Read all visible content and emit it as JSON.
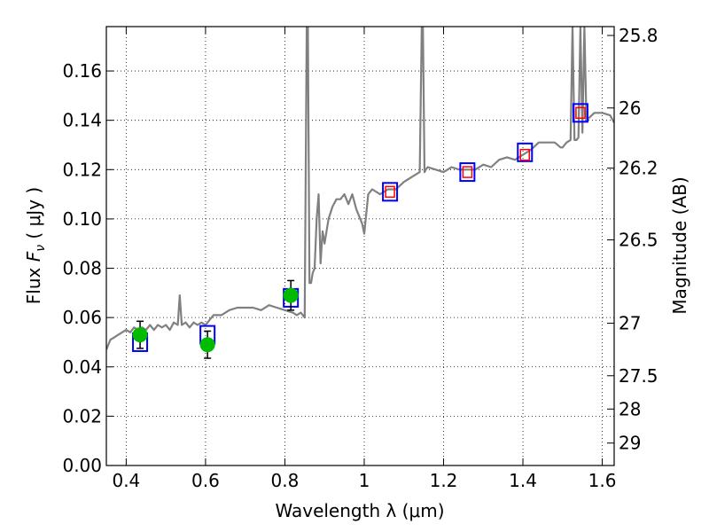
{
  "chart_data": {
    "type": "line",
    "xlabel": "Wavelength  λ (μm)",
    "ylabel": "Flux  F_ν  ( μJy )",
    "ylabel_parts": {
      "prefix": "Flux  ",
      "symbol": "F",
      "subscript": "ν",
      "unit": "  ( μJy )"
    },
    "y2label": "Magnitude (AB)",
    "xlim": [
      0.35,
      1.63
    ],
    "ylim": [
      0.0,
      0.178
    ],
    "grid": true,
    "x_ticks": [
      0.4,
      0.6,
      0.8,
      1.0,
      1.2,
      1.4,
      1.6
    ],
    "x_tick_labels": [
      "0.4",
      "0.6",
      "0.8",
      "1",
      "1.2",
      "1.4",
      "1.6"
    ],
    "y_ticks": [
      0.0,
      0.02,
      0.04,
      0.06,
      0.08,
      0.1,
      0.12,
      0.14,
      0.16
    ],
    "y_tick_labels": [
      "0.00",
      "0.02",
      "0.04",
      "0.06",
      "0.08",
      "0.10",
      "0.12",
      "0.14",
      "0.16"
    ],
    "y2_ticks": [
      {
        "label": "25.8",
        "flux": 0.1744
      },
      {
        "label": "26",
        "flux": 0.145
      },
      {
        "label": "26.2",
        "flux": 0.1206
      },
      {
        "label": "26.5",
        "flux": 0.0915
      },
      {
        "label": "27",
        "flux": 0.0577
      },
      {
        "label": "27.5",
        "flux": 0.0364
      },
      {
        "label": "28",
        "flux": 0.0229
      },
      {
        "label": "29",
        "flux": 0.0091
      }
    ],
    "series": [
      {
        "kind": "model-spectrum",
        "color": "#808080",
        "x": [
          0.35,
          0.36,
          0.37,
          0.38,
          0.39,
          0.4,
          0.41,
          0.42,
          0.43,
          0.44,
          0.45,
          0.46,
          0.47,
          0.48,
          0.49,
          0.5,
          0.51,
          0.52,
          0.53,
          0.535,
          0.54,
          0.55,
          0.56,
          0.57,
          0.58,
          0.59,
          0.6,
          0.61,
          0.62,
          0.64,
          0.66,
          0.68,
          0.7,
          0.72,
          0.74,
          0.76,
          0.78,
          0.8,
          0.82,
          0.83,
          0.84,
          0.85,
          0.855,
          0.858,
          0.862,
          0.866,
          0.87,
          0.875,
          0.88,
          0.885,
          0.89,
          0.895,
          0.9,
          0.91,
          0.92,
          0.93,
          0.94,
          0.95,
          0.96,
          0.97,
          0.98,
          0.99,
          0.995,
          1.0,
          1.01,
          1.02,
          1.04,
          1.06,
          1.08,
          1.1,
          1.12,
          1.14,
          1.145,
          1.148,
          1.152,
          1.155,
          1.16,
          1.18,
          1.2,
          1.22,
          1.24,
          1.26,
          1.28,
          1.3,
          1.32,
          1.34,
          1.36,
          1.38,
          1.4,
          1.42,
          1.44,
          1.46,
          1.48,
          1.495,
          1.5,
          1.505,
          1.51,
          1.52,
          1.525,
          1.53,
          1.535,
          1.54,
          1.545,
          1.55,
          1.555,
          1.56,
          1.58,
          1.6,
          1.62,
          1.63
        ],
        "y": [
          0.047,
          0.051,
          0.052,
          0.053,
          0.054,
          0.055,
          0.054,
          0.056,
          0.055,
          0.056,
          0.055,
          0.057,
          0.055,
          0.057,
          0.056,
          0.057,
          0.055,
          0.058,
          0.057,
          0.069,
          0.057,
          0.058,
          0.056,
          0.058,
          0.057,
          0.058,
          0.057,
          0.059,
          0.061,
          0.061,
          0.063,
          0.064,
          0.064,
          0.064,
          0.063,
          0.065,
          0.064,
          0.063,
          0.062,
          0.061,
          0.062,
          0.06,
          0.178,
          0.178,
          0.074,
          0.074,
          0.078,
          0.08,
          0.1,
          0.11,
          0.082,
          0.095,
          0.09,
          0.1,
          0.105,
          0.108,
          0.108,
          0.11,
          0.106,
          0.11,
          0.104,
          0.1,
          0.098,
          0.094,
          0.11,
          0.112,
          0.11,
          0.112,
          0.112,
          0.115,
          0.117,
          0.119,
          0.178,
          0.178,
          0.119,
          0.12,
          0.121,
          0.12,
          0.119,
          0.121,
          0.12,
          0.12,
          0.12,
          0.122,
          0.121,
          0.124,
          0.125,
          0.124,
          0.126,
          0.128,
          0.131,
          0.131,
          0.131,
          0.129,
          0.129,
          0.13,
          0.131,
          0.132,
          0.178,
          0.132,
          0.132,
          0.133,
          0.178,
          0.135,
          0.178,
          0.14,
          0.143,
          0.143,
          0.142,
          0.139
        ],
        "mode": "line"
      },
      {
        "kind": "model-fluxes-blue-squares",
        "color": "#0000ff",
        "x": [
          0.435,
          0.605,
          0.815,
          1.065,
          1.26,
          1.405,
          1.545
        ],
        "y": [
          0.05,
          0.053,
          0.068,
          0.111,
          0.119,
          0.127,
          0.143
        ],
        "mode": "marker-square"
      },
      {
        "kind": "observed-fluxes-red-squares",
        "color": "#ff0000",
        "x": [
          1.065,
          1.26,
          1.405,
          1.545
        ],
        "y": [
          0.111,
          0.119,
          0.126,
          0.143
        ],
        "mode": "marker-square-small"
      },
      {
        "kind": "observed-fluxes-green-circles",
        "color": "#00bb00",
        "x": [
          0.435,
          0.605,
          0.815
        ],
        "y": [
          0.053,
          0.049,
          0.069
        ],
        "yerr": [
          0.0055,
          0.0055,
          0.006
        ],
        "mode": "marker-circle-errorbar"
      }
    ]
  }
}
